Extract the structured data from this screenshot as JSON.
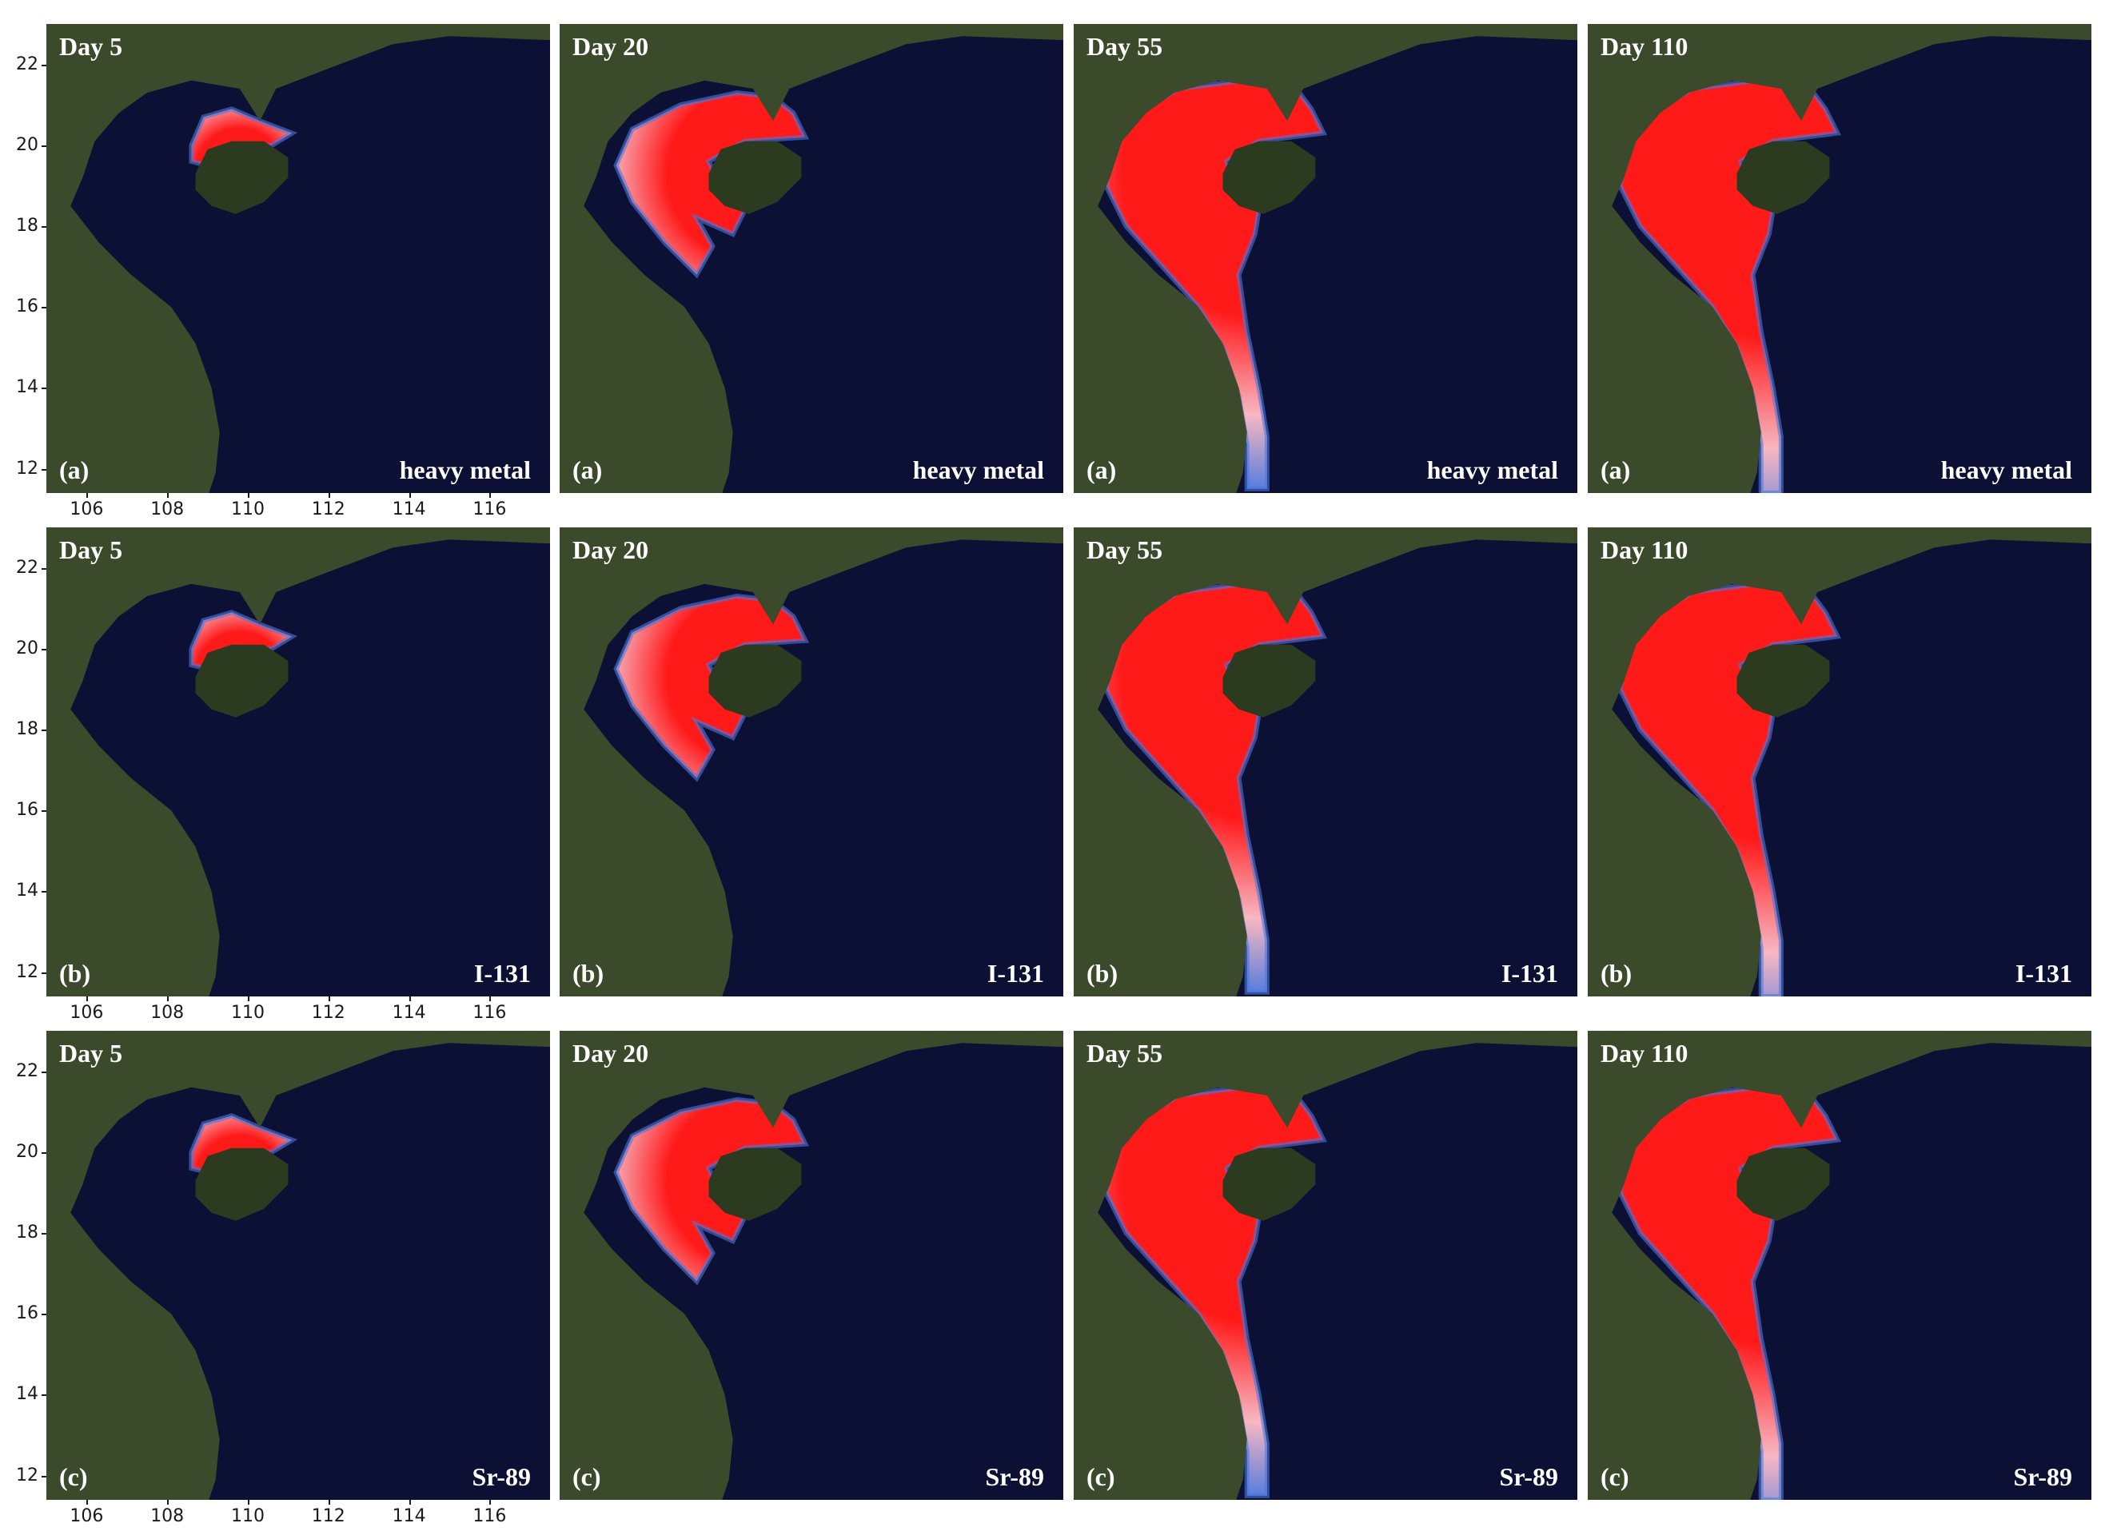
{
  "rows": [
    {
      "substance": "heavy metal",
      "letter": "(a)",
      "panels": [
        {
          "day": "Day 5",
          "stage": 0.12
        },
        {
          "day": "Day 20",
          "stage": 0.42
        },
        {
          "day": "Day 55",
          "stage": 0.85
        },
        {
          "day": "Day 110",
          "stage": 1.0
        }
      ]
    },
    {
      "substance": "I-131",
      "letter": "(b)",
      "panels": [
        {
          "day": "Day 5",
          "stage": 0.12
        },
        {
          "day": "Day 20",
          "stage": 0.42
        },
        {
          "day": "Day 55",
          "stage": 0.85
        },
        {
          "day": "Day 110",
          "stage": 1.0
        }
      ]
    },
    {
      "substance": "Sr-89",
      "letter": "(c)",
      "panels": [
        {
          "day": "Day 5",
          "stage": 0.12
        },
        {
          "day": "Day 20",
          "stage": 0.42
        },
        {
          "day": "Day 55",
          "stage": 0.85
        },
        {
          "day": "Day 110",
          "stage": 1.0
        }
      ]
    }
  ],
  "axes": {
    "lat_ticks": [
      "22",
      "20",
      "18",
      "16",
      "14",
      "12"
    ],
    "lon_ticks": [
      "106",
      "108",
      "110",
      "112",
      "114",
      "116"
    ]
  },
  "colors": {
    "sea": "#0b1034",
    "land": "#3b4a2a",
    "land_dark": "#2c3a20",
    "plume_high": "#ff1a1a",
    "plume_mid": "#f7b7c2",
    "plume_low": "#4a78e0"
  }
}
